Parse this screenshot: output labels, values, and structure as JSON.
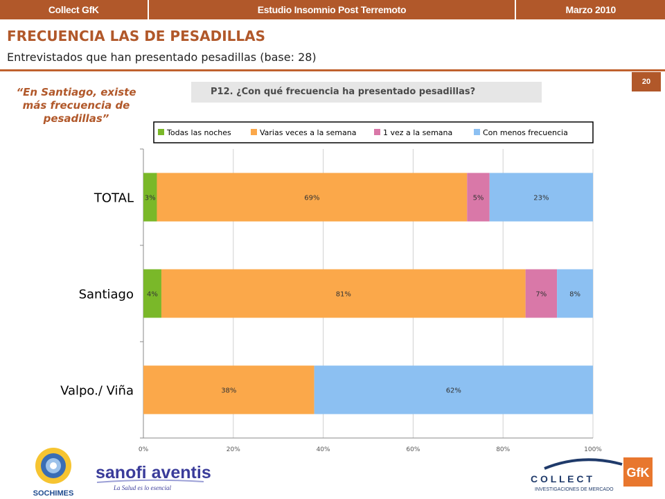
{
  "header": {
    "left": "Collect GfK",
    "center": "Estudio Insomnio Post Terremoto",
    "right": "Marzo 2010"
  },
  "page": {
    "title": "FRECUENCIA LAS DE PESADILLAS",
    "subtitle": "Entrevistados que han presentado pesadillas (base: 28)",
    "page_number": "20",
    "question": "P12. ¿Con qué frecuencia ha presentado pesadillas?",
    "callout": "“En Santiago, existe más frecuencia de pesadillas”"
  },
  "logos": {
    "sochimes": "SOCHIMES",
    "sanofi": "sanofi aventis",
    "sanofi_tagline": "La Salud es lo esencial",
    "collect": "C O L L E C T",
    "collect_tagline": "INVESTIGACIONES DE MERCADO",
    "gfk": "GfK"
  },
  "chart_data": {
    "type": "bar",
    "orientation": "horizontal",
    "stacked": "percent",
    "categories": [
      "TOTAL",
      "Santiago",
      "Valpo./ Viña"
    ],
    "series": [
      {
        "name": "Todas las noches",
        "values": [
          3,
          4,
          0
        ],
        "labels": [
          "3%",
          "4%",
          ""
        ],
        "color": "#7ab829"
      },
      {
        "name": "Varias veces a la semana",
        "values": [
          69,
          81,
          38
        ],
        "labels": [
          "69%",
          "81%",
          "38%"
        ],
        "color": "#fba84a"
      },
      {
        "name": "1 vez a la semana",
        "values": [
          5,
          7,
          0
        ],
        "labels": [
          "5%",
          "7%",
          ""
        ],
        "color": "#d978a8"
      },
      {
        "name": "Con menos frecuencia",
        "values": [
          23,
          8,
          62
        ],
        "labels": [
          "23%",
          "8%",
          "62%"
        ],
        "color": "#8cc0f2"
      }
    ],
    "xlim": [
      0,
      100
    ],
    "xticks": [
      "0%",
      "20%",
      "40%",
      "60%",
      "80%",
      "100%"
    ],
    "grid": true,
    "legend_position": "top"
  }
}
